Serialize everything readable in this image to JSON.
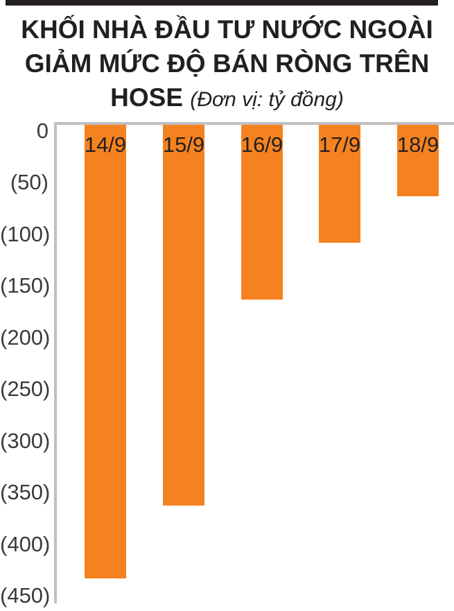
{
  "header": {
    "title_line1": "KHỐI NHÀ ĐẦU TƯ NƯỚC NGOÀI",
    "title_line2": "GIẢM MỨC ĐỘ BÁN RÒNG TRÊN",
    "title_line3_bold": "HOSE",
    "title_line3_unit": "(Đơn vị: tỷ đồng)"
  },
  "chart_data": {
    "type": "bar",
    "orientation": "vertical",
    "title": "KHỐI NHÀ ĐẦU TƯ NƯỚC NGOÀI GIẢM MỨC ĐỘ BÁN RÒNG TRÊN HOSE",
    "unit_label": "(Đơn vị: tỷ đồng)",
    "categories": [
      "14/9",
      "15/9",
      "16/9",
      "17/9",
      "18/9"
    ],
    "values": [
      -435,
      -365,
      -165,
      -110,
      -65
    ],
    "xlabel": "",
    "ylabel": "",
    "ylim": [
      -450,
      0
    ],
    "y_ticks": [
      0,
      -50,
      -100,
      -150,
      -200,
      -250,
      -300,
      -350,
      -400,
      -450
    ],
    "y_tick_labels": [
      "0",
      "(50)",
      "(100)",
      "(150)",
      "(200)",
      "(250)",
      "(300)",
      "(350)",
      "(400)",
      "(450)"
    ],
    "category_label_position": "inside-top-of-bar",
    "grid": false,
    "legend": false,
    "colors": {
      "bar": "#f58220",
      "axis_line": "#bfbfbf",
      "tick_text": "#3a3a3a",
      "title_text": "#231f20",
      "top_rule": "#231f20",
      "background": "#ffffff"
    }
  }
}
